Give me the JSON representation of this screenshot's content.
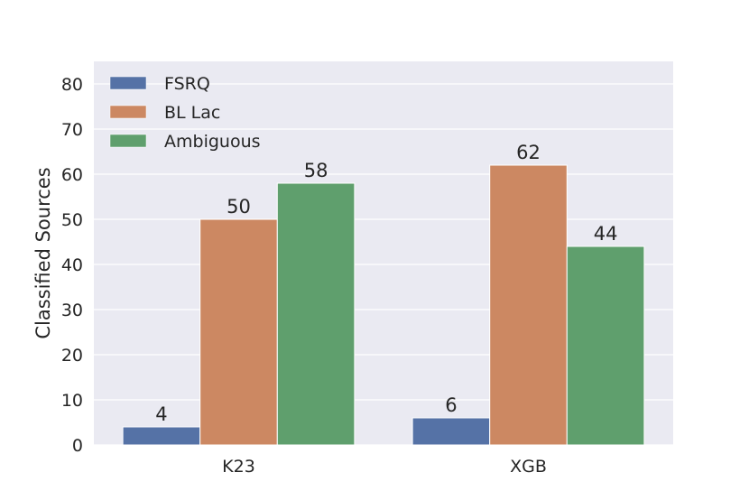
{
  "chart_data": {
    "type": "bar",
    "categories": [
      "K23",
      "XGB"
    ],
    "series": [
      {
        "name": "FSRQ",
        "values": [
          4,
          6
        ],
        "color": "#5572a6"
      },
      {
        "name": "BL Lac",
        "values": [
          50,
          62
        ],
        "color": "#cc8862"
      },
      {
        "name": "Ambiguous",
        "values": [
          58,
          44
        ],
        "color": "#5f9f6d"
      }
    ],
    "data_labels": [
      [
        "4",
        "6"
      ],
      [
        "50",
        "62"
      ],
      [
        "58",
        "44"
      ]
    ],
    "title": "",
    "xlabel": "",
    "ylabel": "Classified Sources",
    "ylim": [
      0,
      85
    ],
    "yticks": [
      "0",
      "10",
      "20",
      "30",
      "40",
      "50",
      "60",
      "70",
      "80"
    ],
    "grid": true,
    "legend_position": "top-left",
    "background": "#eaeaf2"
  }
}
